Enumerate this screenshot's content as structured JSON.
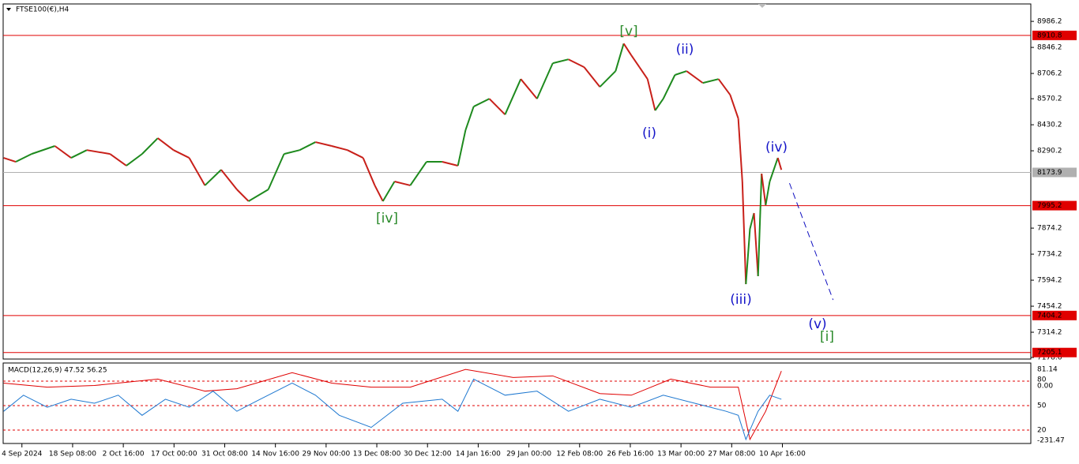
{
  "chart_data": {
    "type": "line",
    "title": "FTSE100(€),H4",
    "xticks": [
      {
        "value": 0,
        "label": "4 Sep 2024"
      },
      {
        "value": 1,
        "label": "18 Sep 08:00"
      },
      {
        "value": 2,
        "label": "2 Oct 16:00"
      },
      {
        "value": 3,
        "label": "17 Oct 00:00"
      },
      {
        "value": 4,
        "label": "31 Oct 08:00"
      },
      {
        "value": 5,
        "label": "14 Nov 16:00"
      },
      {
        "value": 6,
        "label": "29 Nov 00:00"
      },
      {
        "value": 7,
        "label": "13 Dec 08:00"
      },
      {
        "value": 8,
        "label": "30 Dec 12:00"
      },
      {
        "value": 9,
        "label": "14 Jan 16:00"
      },
      {
        "value": 10,
        "label": "29 Jan 00:00"
      },
      {
        "value": 11,
        "label": "12 Feb 08:00"
      },
      {
        "value": 12,
        "label": "26 Feb 16:00"
      },
      {
        "value": 13,
        "label": "13 Mar 00:00"
      },
      {
        "value": 14,
        "label": "27 Mar 08:00"
      },
      {
        "value": 15,
        "label": "10 Apr 16:00"
      }
    ],
    "xlim": [
      -0.37,
      19.9
    ],
    "ylim": [
      7170,
      9080
    ],
    "yticks": [
      8986.2,
      8846.2,
      8706.2,
      8570.2,
      8430.2,
      8290.2,
      7874.2,
      7734.2,
      7594.2,
      7454.2,
      7314.2,
      7178.6
    ],
    "up_color": "#1e8a1e",
    "down_color": "#c8201a",
    "price": {
      "x": [
        -0.36,
        -0.12,
        0.19,
        0.65,
        0.97,
        1.28,
        1.74,
        2.06,
        2.37,
        2.68,
        2.99,
        3.3,
        3.61,
        3.93,
        4.24,
        4.47,
        4.86,
        5.17,
        5.48,
        5.79,
        6.11,
        6.42,
        6.73,
        6.96,
        7.12,
        7.35,
        7.66,
        7.98,
        8.29,
        8.6,
        8.75,
        8.91,
        9.22,
        9.53,
        9.84,
        10.16,
        10.47,
        10.78,
        11.09,
        11.4,
        11.71,
        11.87,
        12.02,
        12.18,
        12.34,
        12.49,
        12.65,
        12.88,
        13.11,
        13.43,
        13.74,
        13.97,
        14.13,
        14.21,
        14.28,
        14.36,
        14.44,
        14.52,
        14.59,
        14.67,
        14.75,
        14.91,
        14.98
      ],
      "values": [
        8252,
        8231,
        8273,
        8316,
        8252,
        8294,
        8273,
        8210,
        8273,
        8358,
        8294,
        8252,
        8104,
        8188,
        8082,
        8019,
        8082,
        8273,
        8294,
        8337,
        8316,
        8294,
        8252,
        8104,
        8019,
        8125,
        8104,
        8231,
        8231,
        8210,
        8401,
        8528,
        8570,
        8485,
        8676,
        8570,
        8761,
        8782,
        8740,
        8634,
        8719,
        8867,
        8804,
        8740,
        8676,
        8507,
        8570,
        8698,
        8719,
        8655,
        8676,
        8591,
        8464,
        8125,
        7573,
        7870,
        7955,
        7616,
        8167,
        7998,
        8125,
        8252,
        8188
      ]
    },
    "projection": {
      "color": "#1010c0",
      "x": [
        15.14,
        16.0
      ],
      "values": [
        8116,
        7488
      ]
    },
    "levels": [
      {
        "value": 8910.8,
        "color": "#e00000"
      },
      {
        "value": 7995.2,
        "color": "#e00000"
      },
      {
        "value": 7404.2,
        "color": "#e00000"
      },
      {
        "value": 7205.1,
        "color": "#e00000"
      },
      {
        "value": 8173.9,
        "color": "#b0b0b0"
      }
    ],
    "annotations": [
      {
        "text": "[v]",
        "color": "#2a8a2a"
      },
      {
        "text": "(ii)",
        "color": "#1414c8"
      },
      {
        "text": "(i)",
        "color": "#1414c8"
      },
      {
        "text": "[iv]",
        "color": "#2a8a2a"
      },
      {
        "text": "(iv)",
        "color": "#1414c8"
      },
      {
        "text": "(iii)",
        "color": "#1414c8"
      },
      {
        "text": "(v)",
        "color": "#1414c8"
      },
      {
        "text": "[i]",
        "color": "#2a8a2a"
      }
    ],
    "macd": {
      "title": "MACD(12,26,9) 47.52 56.25",
      "ylim": [
        -254,
        109
      ],
      "axis_labels": [
        "81.14",
        "80",
        "0.00",
        "50",
        "20",
        "-231.47"
      ],
      "series": [
        {
          "color": "#e00000",
          "x": [
            -0.36,
            0.5,
            1.43,
            2.68,
            3.61,
            4.24,
            5.33,
            6.11,
            6.89,
            7.66,
            8.75,
            9.69,
            10.47,
            11.4,
            12.02,
            12.8,
            13.58,
            14.13,
            14.36,
            14.67,
            14.98
          ],
          "values": [
            18.3,
            0.1,
            7.4,
            36.4,
            -18,
            -7.2,
            65.4,
            18.3,
            0.1,
            0.1,
            80,
            43.7,
            50.9,
            -29,
            -36.2,
            36.4,
            0.1,
            0.1,
            -235.9,
            -108.8,
            72.7
          ]
        },
        {
          "color": "#1e78d0",
          "x": [
            -0.36,
            0.03,
            0.5,
            0.97,
            1.43,
            1.9,
            2.37,
            2.83,
            3.3,
            3.77,
            4.24,
            4.7,
            5.33,
            5.79,
            6.26,
            6.89,
            7.51,
            8.29,
            8.6,
            8.91,
            9.53,
            10.16,
            10.78,
            11.4,
            12.02,
            12.65,
            13.27,
            13.89,
            14.13,
            14.28,
            14.52,
            14.75,
            14.98
          ],
          "values": [
            -108.8,
            -36.2,
            -90.7,
            -54.4,
            -72.5,
            -36.2,
            -127,
            -54.4,
            -90.7,
            -18,
            -108.8,
            -54.4,
            18.3,
            -36.2,
            -127,
            -181.4,
            -72.5,
            -54.4,
            -108.8,
            36.4,
            -36.2,
            -18,
            -108.8,
            -54.4,
            -90.7,
            -36.2,
            -72.5,
            -108.8,
            -127,
            -235.9,
            -108.8,
            -36.2,
            -54.4
          ]
        }
      ]
    }
  }
}
